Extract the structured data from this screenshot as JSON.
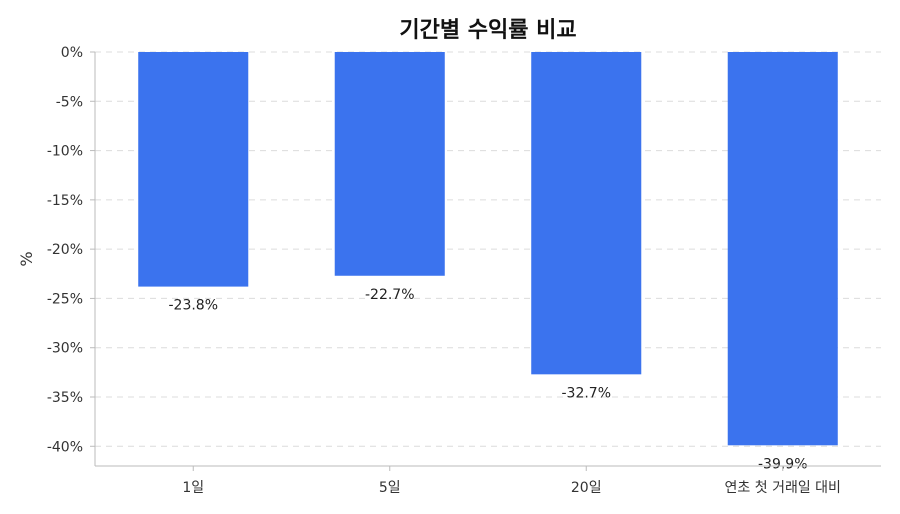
{
  "chart_data": {
    "type": "bar",
    "title": "기간별 수익률 비교",
    "xlabel": "",
    "ylabel": "%",
    "categories": [
      "1일",
      "5일",
      "20일",
      "연초 첫 거래일 대비"
    ],
    "values": [
      -23.8,
      -22.7,
      -32.7,
      -39.9
    ],
    "data_labels": [
      "-23.8%",
      "-22.7%",
      "-32.7%",
      "-39.9%"
    ],
    "yticks": [
      0,
      -5,
      -10,
      -15,
      -20,
      -25,
      -30,
      -35,
      -40
    ],
    "ytick_labels": [
      "0%",
      "-5%",
      "-10%",
      "-15%",
      "-20%",
      "-25%",
      "-30%",
      "-35%",
      "-40%"
    ],
    "ylim": [
      -42,
      0
    ],
    "grid": true,
    "bar_color": "#3b73ee"
  }
}
